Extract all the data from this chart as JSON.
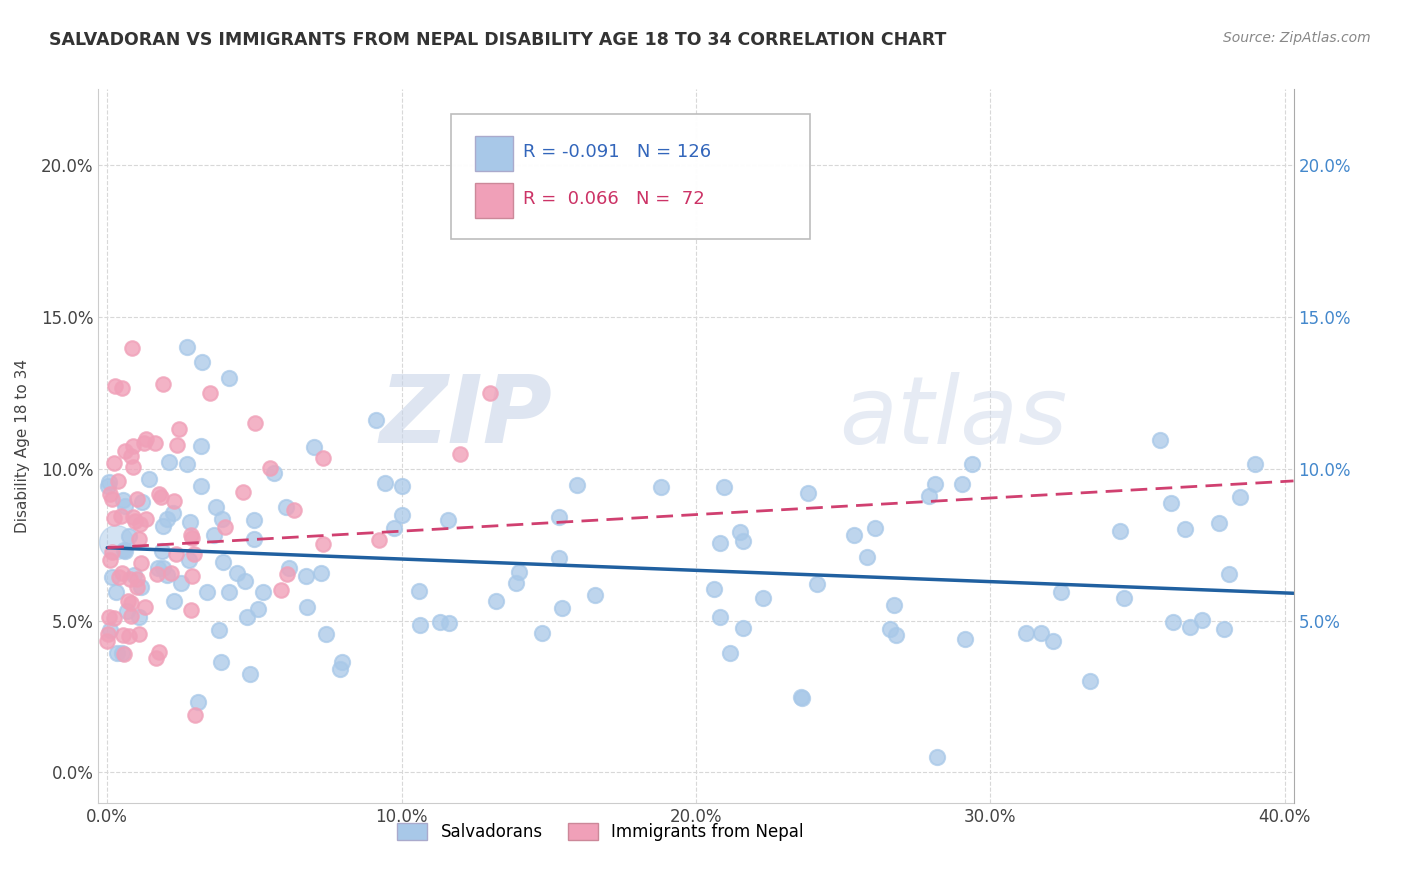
{
  "title": "SALVADORAN VS IMMIGRANTS FROM NEPAL DISABILITY AGE 18 TO 34 CORRELATION CHART",
  "source": "Source: ZipAtlas.com",
  "xlabel": "",
  "ylabel": "Disability Age 18 to 34",
  "r_blue": -0.091,
  "n_blue": 126,
  "r_pink": 0.066,
  "n_pink": 72,
  "legend_blue": "Salvadorans",
  "legend_pink": "Immigrants from Nepal",
  "xlim": [
    -0.003,
    0.403
  ],
  "ylim": [
    -0.01,
    0.225
  ],
  "x_ticks": [
    0.0,
    0.1,
    0.2,
    0.3,
    0.4
  ],
  "x_tick_labels": [
    "0.0%",
    "10.0%",
    "20.0%",
    "30.0%",
    "40.0%"
  ],
  "y_ticks": [
    0.0,
    0.05,
    0.1,
    0.15,
    0.2
  ],
  "y_tick_labels": [
    "0.0%",
    "5.0%",
    "10.0%",
    "15.0%",
    "20.0%"
  ],
  "color_blue": "#a8c8e8",
  "color_pink": "#f0a0b8",
  "trendline_blue": "#2060a0",
  "trendline_pink": "#d04070",
  "background_color": "#ffffff",
  "grid_color": "#d8d8d8",
  "watermark_zip": "ZIP",
  "watermark_atlas": "atlas",
  "right_y_ticks": [
    0.05,
    0.1,
    0.15,
    0.2
  ],
  "right_y_tick_labels": [
    "5.0%",
    "10.0%",
    "15.0%",
    "20.0%"
  ],
  "blue_trendline_x": [
    0.0,
    0.403
  ],
  "blue_trendline_y": [
    0.074,
    0.059
  ],
  "pink_trendline_x": [
    0.0,
    0.403
  ],
  "pink_trendline_y": [
    0.074,
    0.096
  ]
}
